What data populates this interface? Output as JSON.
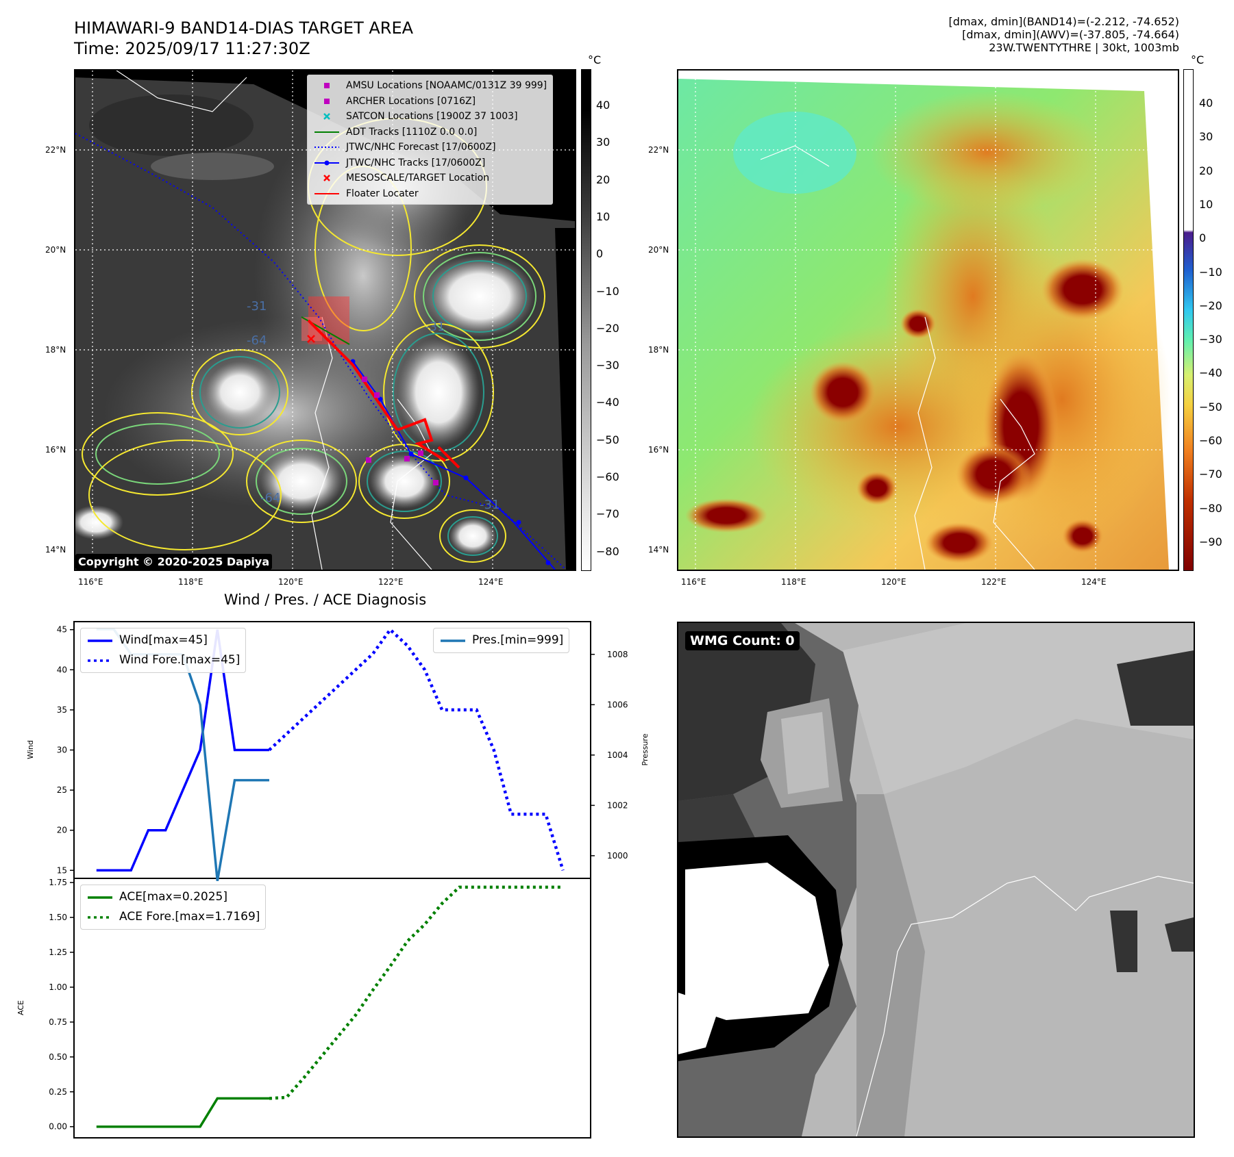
{
  "header": {
    "title_line1": "HIMAWARI-9 BAND14-DIAS TARGET AREA",
    "title_line2": "Time: 2025/09/17 11:27:30Z",
    "info_line1": "[dmax, dmin](BAND14)=(-2.212, -74.652)",
    "info_line2": "[dmax, dmin](AWV)=(-37.805, -74.664)",
    "info_line3": "23W.TWENTYTHRE | 30kt, 1003mb"
  },
  "map": {
    "lat_labels": [
      "22°N",
      "20°N",
      "18°N",
      "16°N",
      "14°N"
    ],
    "lon_labels": [
      "116°E",
      "118°E",
      "120°E",
      "122°E",
      "124°E"
    ],
    "copyright": "Copyright © 2020-2025 Dapiya",
    "contour_labels": [
      "-31",
      "-64",
      "-31",
      "-64",
      "-31"
    ],
    "legend": [
      {
        "label": "AMSU Locations [NOAAMC/0131Z 39 999]",
        "symbol": "square",
        "color": "#bf00bf"
      },
      {
        "label": "ARCHER Locations [0716Z]",
        "symbol": "square",
        "color": "#bf00bf"
      },
      {
        "label": "SATCON Locations [1900Z 37 1003]",
        "symbol": "x",
        "color": "#00bfbf"
      },
      {
        "label": "ADT Tracks [1110Z 0.0 0.0]",
        "symbol": "line",
        "color": "#008000"
      },
      {
        "label": "JTWC/NHC Forecast [17/0600Z]",
        "symbol": "dotted",
        "color": "#0000ff"
      },
      {
        "label": "JTWC/NHC Tracks [17/0600Z]",
        "symbol": "linedot",
        "color": "#0000ff"
      },
      {
        "label": "MESOSCALE/TARGET Location",
        "symbol": "x",
        "color": "#ff0000"
      },
      {
        "label": "Floater Locater",
        "symbol": "line",
        "color": "#ff0000"
      }
    ]
  },
  "colorbar_gray": {
    "unit": "°C",
    "ticks": [
      "40",
      "30",
      "20",
      "10",
      "0",
      "−10",
      "−20",
      "−30",
      "−40",
      "−50",
      "−60",
      "−70",
      "−80"
    ]
  },
  "colorbar_awv": {
    "unit": "°C",
    "ticks": [
      "40",
      "30",
      "20",
      "10",
      "0",
      "−10",
      "−20",
      "−30",
      "−40",
      "−50",
      "−60",
      "−70",
      "−80",
      "−90"
    ]
  },
  "wmg": {
    "label": "WMG Count: 0"
  },
  "diagnosis": {
    "title": "Wind / Pres. / ACE Diagnosis"
  },
  "chart_data": [
    {
      "type": "line",
      "title": "Wind / Pres. / ACE Diagnosis",
      "ylabel": "Wind",
      "ylabel_right": "Pressure",
      "ylim": [
        14,
        46
      ],
      "ylim_right": [
        999.1,
        1009.3
      ],
      "yticks": [
        15,
        20,
        25,
        30,
        35,
        40,
        45
      ],
      "yticks_right": [
        1000,
        1002,
        1004,
        1006,
        1008
      ],
      "x": [
        0,
        1,
        2,
        3,
        4,
        5,
        6,
        7,
        8,
        9,
        10,
        11,
        12,
        13,
        14,
        15,
        16,
        17,
        18,
        19,
        20,
        21,
        22,
        23,
        24,
        25,
        26,
        27
      ],
      "series": [
        {
          "name": "Wind[max=45]",
          "axis": "left",
          "style": "solid",
          "color": "#0000ff",
          "x": [
            0,
            1,
            2,
            3,
            4,
            5,
            6,
            7,
            8,
            9,
            10
          ],
          "values": [
            15,
            15,
            15,
            20,
            20,
            25,
            30,
            45,
            30,
            30,
            30
          ]
        },
        {
          "name": "Wind Fore.[max=45]",
          "axis": "left",
          "style": "dotted",
          "color": "#0000ff",
          "x": [
            10,
            11,
            12,
            13,
            14,
            15,
            16,
            17,
            18,
            19,
            20,
            21,
            22,
            23,
            24,
            25,
            26,
            27
          ],
          "values": [
            30,
            32,
            34,
            36,
            38,
            40,
            42,
            45,
            43,
            40,
            35,
            35,
            35,
            30,
            22,
            22,
            22,
            15
          ]
        },
        {
          "name": "Pres.[min=999]",
          "axis": "right",
          "style": "solid",
          "color": "#1f77b4",
          "x": [
            0,
            1,
            2,
            3,
            4,
            5,
            6,
            7,
            8,
            9,
            10
          ],
          "values": [
            1009,
            1009,
            1008,
            1008,
            1008,
            1008,
            1006,
            999,
            1003,
            1003,
            1003
          ]
        }
      ]
    },
    {
      "type": "line",
      "ylabel": "ACE",
      "ylim": [
        -0.08,
        1.78
      ],
      "yticks": [
        "0.00",
        "0.25",
        "0.50",
        "0.75",
        "1.00",
        "1.25",
        "1.50",
        "1.75"
      ],
      "x": [
        0,
        1,
        2,
        3,
        4,
        5,
        6,
        7,
        8,
        9,
        10,
        11,
        12,
        13,
        14,
        15,
        16,
        17,
        18,
        19,
        20,
        21,
        22,
        23,
        24,
        25,
        26,
        27
      ],
      "series": [
        {
          "name": "ACE[max=0.2025]",
          "style": "solid",
          "color": "#008000",
          "x": [
            0,
            1,
            2,
            3,
            4,
            5,
            6,
            7,
            8,
            9,
            10
          ],
          "values": [
            0,
            0,
            0,
            0,
            0,
            0,
            0,
            0.2025,
            0.2025,
            0.2025,
            0.2025
          ]
        },
        {
          "name": "ACE Fore.[max=1.7169]",
          "style": "dotted",
          "color": "#008000",
          "x": [
            10,
            11,
            12,
            13,
            14,
            15,
            16,
            17,
            18,
            19,
            20,
            21,
            22,
            23,
            24,
            25,
            26,
            27
          ],
          "values": [
            0.2025,
            0.21,
            0.35,
            0.5,
            0.65,
            0.8,
            0.98,
            1.15,
            1.33,
            1.45,
            1.6,
            1.7169,
            1.7169,
            1.7169,
            1.7169,
            1.7169,
            1.7169,
            1.7169
          ]
        }
      ]
    }
  ]
}
